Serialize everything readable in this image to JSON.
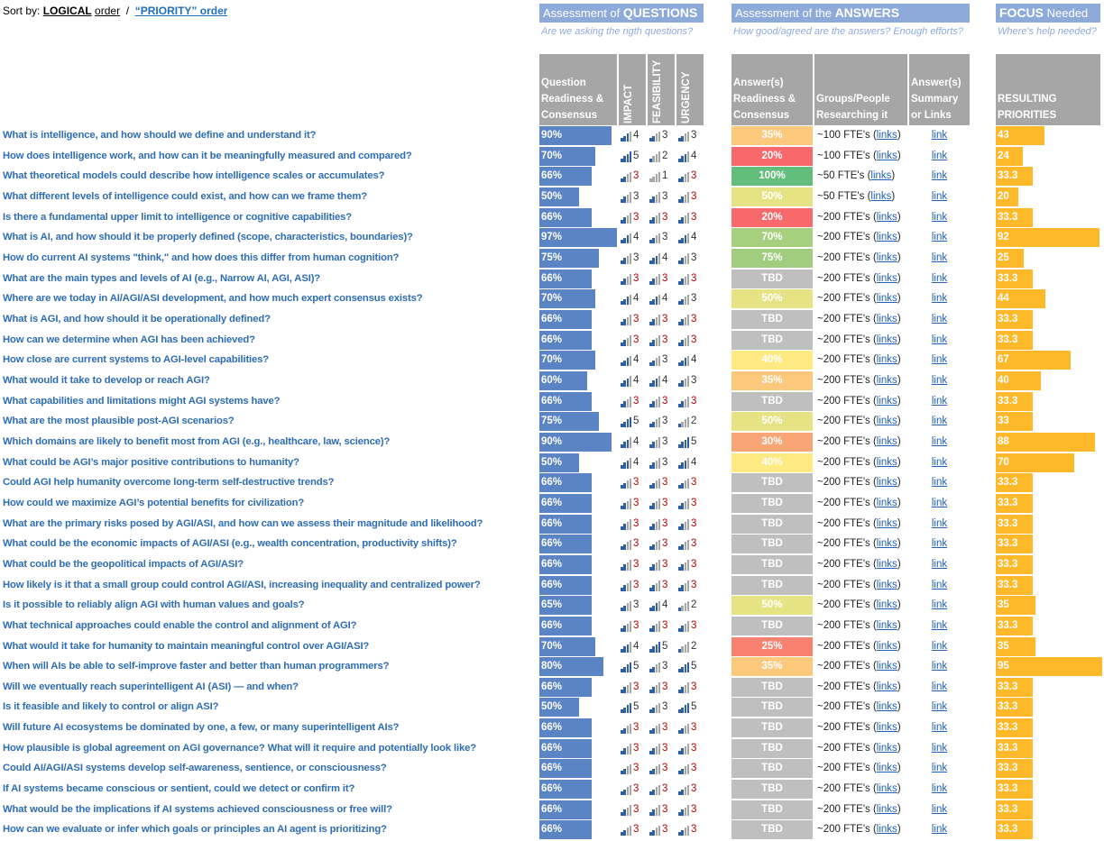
{
  "sort": {
    "label": "Sort by:",
    "logical": "LOGICAL",
    "logical_suffix": "order",
    "sep": "/",
    "priority": "“PRIORITY” order"
  },
  "sections": [
    {
      "pre": "Assessment of ",
      "bold": "QUESTIONS",
      "post": "",
      "subtitle": "Are we asking the rigth questions?"
    },
    {
      "pre": "Assessment of the ",
      "bold": "ANSWERS",
      "post": "",
      "subtitle": "How good/agreed are the answers? Enough efforts?"
    },
    {
      "pre": "",
      "bold": "FOCUS",
      "post": " Needed",
      "subtitle": "Where's help needed?"
    }
  ],
  "columns": {
    "readiness": "Question Readiness & Consensus",
    "impact": "IMPACT",
    "feasibility": "FEASIBILITY",
    "urgency": "URGENCY",
    "answer": "Answer(s) Readiness & Consensus",
    "groups": "Groups/People Researching it",
    "summary": "Answer(s) Summary or Links",
    "priority": "RESULTING PRIORITIES"
  },
  "rows": [
    {
      "question": "What is intelligence, and how should we define and understand it?",
      "readiness": 90,
      "readiness_label": "90%",
      "impact": 4,
      "feasibility": 3,
      "urgency": 3,
      "score_colors": [
        "#333",
        "#333",
        "#333"
      ],
      "answer": "35%",
      "answer_color": "#fcc97c",
      "groups": [
        "~100 FTE's (",
        "links",
        ")"
      ],
      "summary": "link",
      "priority": 43
    },
    {
      "question": "How does intelligence work, and how can it be meaningfully measured and compared?",
      "readiness": 70,
      "readiness_label": "70%",
      "impact": 5,
      "feasibility": 2,
      "urgency": 4,
      "score_colors": [
        "#333",
        "#333",
        "#333"
      ],
      "answer": "20%",
      "answer_color": "#f8696b",
      "groups": [
        "~100 FTE's (",
        "links",
        ")"
      ],
      "summary": "link",
      "priority": 24
    },
    {
      "question": "What theoretical models could describe how intelligence scales or accumulates?",
      "readiness": 66,
      "readiness_label": "66%",
      "impact": 3,
      "feasibility": 1,
      "urgency": 3,
      "score_colors": [
        "#c00000",
        "#333",
        "#c00000"
      ],
      "answer": "100%",
      "answer_color": "#63be7b",
      "groups": [
        "~50 FTE's (",
        "links",
        ")"
      ],
      "summary": "link",
      "priority": 33.3
    },
    {
      "question": "What different levels of intelligence could exist, and how can we frame them?",
      "readiness": 50,
      "readiness_label": "50%",
      "impact": 3,
      "feasibility": 3,
      "urgency": 3,
      "score_colors": [
        "#333",
        "#333",
        "#c00000"
      ],
      "answer": "50%",
      "answer_color": "#e5e383",
      "groups": [
        "~50 FTE's (",
        "links",
        ")"
      ],
      "summary": "link",
      "priority": 20
    },
    {
      "question": "Is there a fundamental upper limit to intelligence or cognitive capabilities?",
      "readiness": 66,
      "readiness_label": "66%",
      "impact": 3,
      "feasibility": 3,
      "urgency": 3,
      "score_colors": [
        "#c00000",
        "#c00000",
        "#c00000"
      ],
      "answer": "20%",
      "answer_color": "#f8696b",
      "groups": [
        "~200 FTE's (",
        "links",
        ")"
      ],
      "summary": "link",
      "priority": 33.3
    },
    {
      "question": "What is AI, and how should it be properly defined (scope, characteristics, boundaries)?",
      "readiness": 97,
      "readiness_label": "97%",
      "impact": 4,
      "feasibility": 3,
      "urgency": 4,
      "score_colors": [
        "#333",
        "#333",
        "#333"
      ],
      "answer": "70%",
      "answer_color": "#a7d07e",
      "groups": [
        "~200 FTE's (",
        "links",
        ")"
      ],
      "summary": "link",
      "priority": 92
    },
    {
      "question": "How do current AI systems \"think,\" and how does this differ from human cognition?",
      "readiness": 75,
      "readiness_label": "75%",
      "impact": 3,
      "feasibility": 4,
      "urgency": 3,
      "score_colors": [
        "#333",
        "#333",
        "#333"
      ],
      "answer": "75%",
      "answer_color": "#a0cd7e",
      "groups": [
        "~200 FTE's (",
        "links",
        ")"
      ],
      "summary": "link",
      "priority": 25
    },
    {
      "question": "What are the main types and levels of AI (e.g., Narrow AI, AGI, ASI)?",
      "readiness": 66,
      "readiness_label": "66%",
      "impact": 3,
      "feasibility": 3,
      "urgency": 3,
      "score_colors": [
        "#c00000",
        "#c00000",
        "#c00000"
      ],
      "answer": "TBD",
      "answer_color": "#bfbfbf",
      "groups": [
        "~200 FTE's (",
        "links",
        ")"
      ],
      "summary": "link",
      "priority": 33.3
    },
    {
      "question": "Where are we today in AI/AGI/ASI development, and how much expert consensus exists?",
      "readiness": 70,
      "readiness_label": "70%",
      "impact": 4,
      "feasibility": 4,
      "urgency": 3,
      "score_colors": [
        "#333",
        "#333",
        "#333"
      ],
      "answer": "50%",
      "answer_color": "#e5e383",
      "groups": [
        "~200 FTE's (",
        "links",
        ")"
      ],
      "summary": "link",
      "priority": 44
    },
    {
      "question": "What is AGI, and how should it be operationally defined?",
      "readiness": 66,
      "readiness_label": "66%",
      "impact": 3,
      "feasibility": 3,
      "urgency": 3,
      "score_colors": [
        "#c00000",
        "#c00000",
        "#c00000"
      ],
      "answer": "TBD",
      "answer_color": "#bfbfbf",
      "groups": [
        "~200 FTE's (",
        "links",
        ")"
      ],
      "summary": "link",
      "priority": 33.3
    },
    {
      "question": "How can we determine when AGI has been achieved?",
      "readiness": 66,
      "readiness_label": "66%",
      "impact": 3,
      "feasibility": 3,
      "urgency": 3,
      "score_colors": [
        "#c00000",
        "#c00000",
        "#c00000"
      ],
      "answer": "TBD",
      "answer_color": "#bfbfbf",
      "groups": [
        "~200 FTE's (",
        "links",
        ")"
      ],
      "summary": "link",
      "priority": 33.3
    },
    {
      "question": "How close are current systems to AGI-level capabilities?",
      "readiness": 70,
      "readiness_label": "70%",
      "impact": 4,
      "feasibility": 3,
      "urgency": 4,
      "score_colors": [
        "#333",
        "#333",
        "#333"
      ],
      "answer": "40%",
      "answer_color": "#fee983",
      "groups": [
        "~200 FTE's (",
        "links",
        ")"
      ],
      "summary": "link",
      "priority": 67
    },
    {
      "question": "What would it take to develop or reach AGI?",
      "readiness": 60,
      "readiness_label": "60%",
      "impact": 4,
      "feasibility": 4,
      "urgency": 3,
      "score_colors": [
        "#333",
        "#333",
        "#333"
      ],
      "answer": "35%",
      "answer_color": "#fcc97c",
      "groups": [
        "~200 FTE's (",
        "links",
        ")"
      ],
      "summary": "link",
      "priority": 40
    },
    {
      "question": "What capabilities and limitations might AGI systems have?",
      "readiness": 66,
      "readiness_label": "66%",
      "impact": 3,
      "feasibility": 3,
      "urgency": 3,
      "score_colors": [
        "#c00000",
        "#c00000",
        "#c00000"
      ],
      "answer": "TBD",
      "answer_color": "#bfbfbf",
      "groups": [
        "~200 FTE's (",
        "links",
        ")"
      ],
      "summary": "link",
      "priority": 33.3
    },
    {
      "question": "What are the most plausible post-AGI scenarios?",
      "readiness": 75,
      "readiness_label": "75%",
      "impact": 5,
      "feasibility": 3,
      "urgency": 2,
      "score_colors": [
        "#333",
        "#333",
        "#333"
      ],
      "answer": "50%",
      "answer_color": "#e5e383",
      "groups": [
        "~200 FTE's (",
        "links",
        ")"
      ],
      "summary": "link",
      "priority": 33
    },
    {
      "question": "Which domains are likely to benefit most from AGI (e.g., healthcare, law, science)?",
      "readiness": 90,
      "readiness_label": "90%",
      "impact": 4,
      "feasibility": 3,
      "urgency": 5,
      "score_colors": [
        "#333",
        "#333",
        "#333"
      ],
      "answer": "30%",
      "answer_color": "#f9a677",
      "groups": [
        "~200 FTE's (",
        "links",
        ")"
      ],
      "summary": "link",
      "priority": 88
    },
    {
      "question": "What could be AGI’s major positive contributions to humanity?",
      "readiness": 50,
      "readiness_label": "50%",
      "impact": 4,
      "feasibility": 3,
      "urgency": 4,
      "score_colors": [
        "#333",
        "#333",
        "#333"
      ],
      "answer": "40%",
      "answer_color": "#fee983",
      "groups": [
        "~200 FTE's (",
        "links",
        ")"
      ],
      "summary": "link",
      "priority": 70
    },
    {
      "question": "Could AGI help humanity overcome long-term self-destructive trends?",
      "readiness": 66,
      "readiness_label": "66%",
      "impact": 3,
      "feasibility": 3,
      "urgency": 3,
      "score_colors": [
        "#c00000",
        "#c00000",
        "#c00000"
      ],
      "answer": "TBD",
      "answer_color": "#bfbfbf",
      "groups": [
        "~200 FTE's (",
        "links",
        ")"
      ],
      "summary": "link",
      "priority": 33.3
    },
    {
      "question": "How could we maximize AGI’s potential benefits for civilization?",
      "readiness": 66,
      "readiness_label": "66%",
      "impact": 3,
      "feasibility": 3,
      "urgency": 3,
      "score_colors": [
        "#c00000",
        "#c00000",
        "#c00000"
      ],
      "answer": "TBD",
      "answer_color": "#bfbfbf",
      "groups": [
        "~200 FTE's (",
        "links",
        ")"
      ],
      "summary": "link",
      "priority": 33.3
    },
    {
      "question": "What are the primary risks posed by AGI/ASI, and how can we assess their magnitude and likelihood?",
      "readiness": 66,
      "readiness_label": "66%",
      "impact": 3,
      "feasibility": 3,
      "urgency": 3,
      "score_colors": [
        "#c00000",
        "#c00000",
        "#c00000"
      ],
      "answer": "TBD",
      "answer_color": "#bfbfbf",
      "groups": [
        "~200 FTE's (",
        "links",
        ")"
      ],
      "summary": "link",
      "priority": 33.3
    },
    {
      "question": "What could be the economic impacts of AGI/ASI (e.g., wealth concentration, productivity shifts)?",
      "readiness": 66,
      "readiness_label": "66%",
      "impact": 3,
      "feasibility": 3,
      "urgency": 3,
      "score_colors": [
        "#c00000",
        "#c00000",
        "#c00000"
      ],
      "answer": "TBD",
      "answer_color": "#bfbfbf",
      "groups": [
        "~200 FTE's (",
        "links",
        ")"
      ],
      "summary": "link",
      "priority": 33.3
    },
    {
      "question": "What could be the geopolitical impacts of AGI/ASI?",
      "readiness": 66,
      "readiness_label": "66%",
      "impact": 3,
      "feasibility": 3,
      "urgency": 3,
      "score_colors": [
        "#c00000",
        "#c00000",
        "#c00000"
      ],
      "answer": "TBD",
      "answer_color": "#bfbfbf",
      "groups": [
        "~200 FTE's (",
        "links",
        ")"
      ],
      "summary": "link",
      "priority": 33.3
    },
    {
      "question": "How likely is it that a small group could control AGI/ASI, increasing inequality and centralized power?",
      "readiness": 66,
      "readiness_label": "66%",
      "impact": 3,
      "feasibility": 3,
      "urgency": 3,
      "score_colors": [
        "#c00000",
        "#c00000",
        "#c00000"
      ],
      "answer": "TBD",
      "answer_color": "#bfbfbf",
      "groups": [
        "~200 FTE's (",
        "links",
        ")"
      ],
      "summary": "link",
      "priority": 33.3
    },
    {
      "question": "Is it possible to reliably align AGI with human values and goals?",
      "readiness": 65,
      "readiness_label": "65%",
      "impact": 3,
      "feasibility": 4,
      "urgency": 2,
      "score_colors": [
        "#333",
        "#333",
        "#333"
      ],
      "answer": "50%",
      "answer_color": "#e5e383",
      "groups": [
        "~200 FTE's (",
        "links",
        ")"
      ],
      "summary": "link",
      "priority": 35
    },
    {
      "question": "What technical approaches could enable the control and alignment of AGI?",
      "readiness": 66,
      "readiness_label": "66%",
      "impact": 3,
      "feasibility": 3,
      "urgency": 3,
      "score_colors": [
        "#c00000",
        "#c00000",
        "#c00000"
      ],
      "answer": "TBD",
      "answer_color": "#bfbfbf",
      "groups": [
        "~200 FTE's (",
        "links",
        ")"
      ],
      "summary": "link",
      "priority": 33.3
    },
    {
      "question": "What would it take for humanity to maintain meaningful control over AGI/ASI?",
      "readiness": 70,
      "readiness_label": "70%",
      "impact": 4,
      "feasibility": 5,
      "urgency": 2,
      "score_colors": [
        "#333",
        "#333",
        "#333"
      ],
      "answer": "25%",
      "answer_color": "#f8826f",
      "groups": [
        "~200 FTE's (",
        "links",
        ")"
      ],
      "summary": "link",
      "priority": 35
    },
    {
      "question": "When will AIs be able to self-improve faster and better than human programmers?",
      "readiness": 80,
      "readiness_label": "80%",
      "impact": 5,
      "feasibility": 3,
      "urgency": 5,
      "score_colors": [
        "#333",
        "#333",
        "#333"
      ],
      "answer": "35%",
      "answer_color": "#fcc97c",
      "groups": [
        "~200 FTE's (",
        "links",
        ")"
      ],
      "summary": "link",
      "priority": 95
    },
    {
      "question": "Will we eventually reach superintelligent AI (ASI) — and when?",
      "readiness": 66,
      "readiness_label": "66%",
      "impact": 3,
      "feasibility": 3,
      "urgency": 3,
      "score_colors": [
        "#c00000",
        "#c00000",
        "#c00000"
      ],
      "answer": "TBD",
      "answer_color": "#bfbfbf",
      "groups": [
        "~200 FTE's (",
        "links",
        ")"
      ],
      "summary": "link",
      "priority": 33.3
    },
    {
      "question": "Is it feasible and likely to control or align ASI?",
      "readiness": 50,
      "readiness_label": "50%",
      "impact": 5,
      "feasibility": 3,
      "urgency": 5,
      "score_colors": [
        "#333",
        "#333",
        "#333"
      ],
      "answer": "TBD",
      "answer_color": "#bfbfbf",
      "groups": [
        "~200 FTE's (",
        "links",
        ")"
      ],
      "summary": "link",
      "priority": 33.3
    },
    {
      "question": "Will future AI ecosystems be dominated by one, a few, or many superintelligent AIs?",
      "readiness": 66,
      "readiness_label": "66%",
      "impact": 3,
      "feasibility": 3,
      "urgency": 3,
      "score_colors": [
        "#c00000",
        "#c00000",
        "#c00000"
      ],
      "answer": "TBD",
      "answer_color": "#bfbfbf",
      "groups": [
        "~200 FTE's (",
        "links",
        ")"
      ],
      "summary": "link",
      "priority": 33.3
    },
    {
      "question": "How plausible is global agreement on AGI governance? What will it require and potentially look like?",
      "readiness": 66,
      "readiness_label": "66%",
      "impact": 3,
      "feasibility": 3,
      "urgency": 3,
      "score_colors": [
        "#c00000",
        "#c00000",
        "#c00000"
      ],
      "answer": "TBD",
      "answer_color": "#bfbfbf",
      "groups": [
        "~200 FTE's (",
        "links",
        ")"
      ],
      "summary": "link",
      "priority": 33.3
    },
    {
      "question": "Could AI/AGI/ASI systems develop self-awareness, sentience, or consciousness?",
      "readiness": 66,
      "readiness_label": "66%",
      "impact": 3,
      "feasibility": 3,
      "urgency": 3,
      "score_colors": [
        "#c00000",
        "#c00000",
        "#c00000"
      ],
      "answer": "TBD",
      "answer_color": "#bfbfbf",
      "groups": [
        "~200 FTE's (",
        "links",
        ")"
      ],
      "summary": "link",
      "priority": 33.3
    },
    {
      "question": "If AI systems became conscious or sentient, could we detect or confirm it?",
      "readiness": 66,
      "readiness_label": "66%",
      "impact": 3,
      "feasibility": 3,
      "urgency": 3,
      "score_colors": [
        "#c00000",
        "#c00000",
        "#c00000"
      ],
      "answer": "TBD",
      "answer_color": "#bfbfbf",
      "groups": [
        "~200 FTE's (",
        "links",
        ")"
      ],
      "summary": "link",
      "priority": 33.3
    },
    {
      "question": "What would be the implications if AI systems achieved consciousness or free will?",
      "readiness": 66,
      "readiness_label": "66%",
      "impact": 3,
      "feasibility": 3,
      "urgency": 3,
      "score_colors": [
        "#c00000",
        "#c00000",
        "#c00000"
      ],
      "answer": "TBD",
      "answer_color": "#bfbfbf",
      "groups": [
        "~200 FTE's (",
        "links",
        ")"
      ],
      "summary": "link",
      "priority": 33.3
    },
    {
      "question": "How can we evaluate or infer which goals or principles an AI agent is prioritizing?",
      "readiness": 66,
      "readiness_label": "66%",
      "impact": 3,
      "feasibility": 3,
      "urgency": 3,
      "score_colors": [
        "#c00000",
        "#c00000",
        "#c00000"
      ],
      "answer": "TBD",
      "answer_color": "#bfbfbf",
      "groups": [
        "~200 FTE's (",
        "links",
        ")"
      ],
      "summary": "link",
      "priority": 33.3
    }
  ]
}
